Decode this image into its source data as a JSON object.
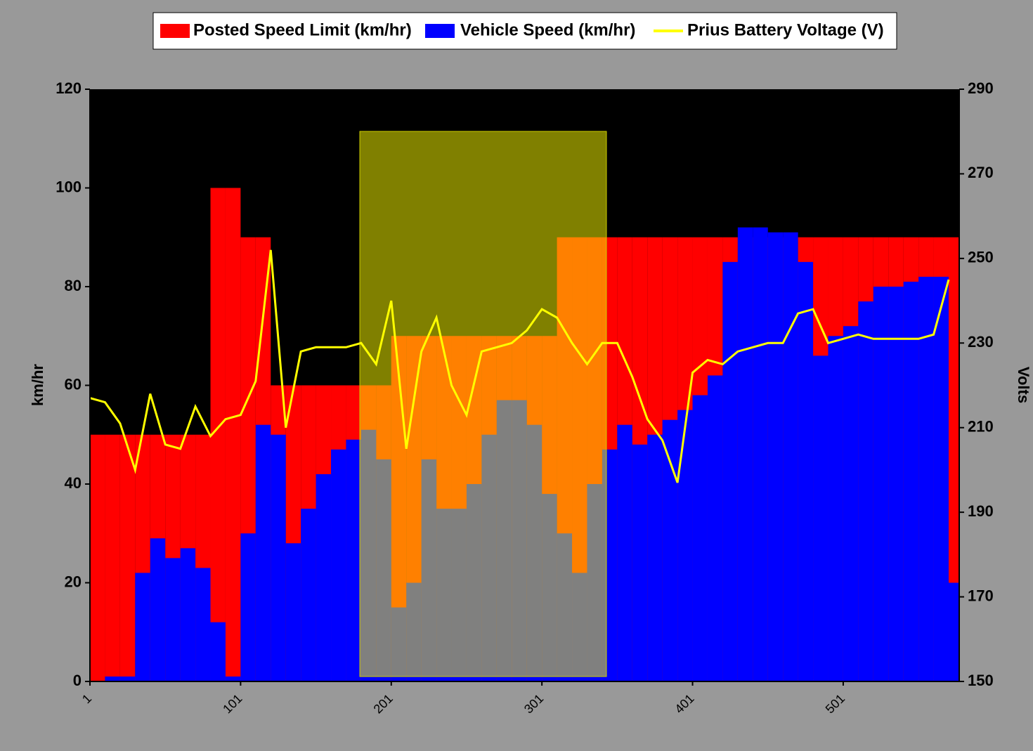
{
  "chart_data": {
    "type": "bar-line",
    "y_label": "km/hr",
    "y2_label": "Volts",
    "x": [
      1,
      11,
      21,
      31,
      41,
      51,
      61,
      71,
      81,
      91,
      101,
      111,
      121,
      131,
      141,
      151,
      161,
      171,
      181,
      191,
      201,
      211,
      221,
      231,
      241,
      251,
      261,
      271,
      281,
      291,
      301,
      311,
      321,
      331,
      341,
      351,
      361,
      371,
      381,
      391,
      401,
      411,
      421,
      431,
      441,
      451,
      461,
      471,
      481,
      491,
      501,
      511,
      521,
      531,
      541,
      551,
      561,
      571
    ],
    "series": [
      {
        "name": "Posted Speed Limit (km/hr)",
        "color": "#ff0000",
        "kind": "bar",
        "values": [
          50,
          50,
          50,
          50,
          50,
          50,
          50,
          50,
          100,
          100,
          90,
          90,
          60,
          60,
          60,
          60,
          60,
          60,
          60,
          60,
          70,
          70,
          70,
          70,
          70,
          70,
          70,
          70,
          70,
          70,
          70,
          90,
          90,
          90,
          90,
          90,
          90,
          90,
          90,
          90,
          90,
          90,
          90,
          90,
          90,
          90,
          90,
          90,
          90,
          90,
          90,
          90,
          90,
          90,
          90,
          90,
          90,
          90
        ]
      },
      {
        "name": "Vehicle Speed (km/hr)",
        "color": "#0000ff",
        "kind": "bar",
        "values": [
          0,
          1,
          1,
          22,
          29,
          25,
          27,
          23,
          12,
          1,
          30,
          52,
          50,
          28,
          35,
          42,
          47,
          49,
          51,
          45,
          15,
          20,
          45,
          35,
          35,
          40,
          50,
          57,
          57,
          52,
          38,
          30,
          22,
          40,
          47,
          52,
          48,
          50,
          53,
          55,
          58,
          62,
          85,
          92,
          92,
          91,
          91,
          85,
          66,
          70,
          72,
          77,
          80,
          80,
          81,
          82,
          82,
          20
        ]
      },
      {
        "name": "Prius Battery Voltage (V)",
        "color": "#ffff00",
        "kind": "line",
        "axis": "y2",
        "values": [
          217,
          216,
          211,
          200,
          218,
          206,
          205,
          215,
          208,
          212,
          213,
          221,
          252,
          210,
          228,
          229,
          229,
          229,
          230,
          225,
          240,
          205,
          228,
          236,
          220,
          213,
          228,
          229,
          230,
          233,
          238,
          236,
          230,
          225,
          230,
          230,
          222,
          212,
          207,
          197,
          223,
          226,
          225,
          228,
          229,
          230,
          230,
          237,
          238,
          230,
          231,
          232,
          231,
          231,
          231,
          231,
          232,
          245
        ]
      }
    ],
    "xlim": [
      1,
      578
    ],
    "xticks": [
      1,
      101,
      201,
      301,
      401,
      501
    ],
    "ylim": [
      0,
      120
    ],
    "yticks": [
      0,
      20,
      40,
      60,
      80,
      100,
      120
    ],
    "y2lim": [
      150,
      290
    ],
    "y2ticks": [
      150,
      170,
      190,
      210,
      230,
      250,
      270,
      290
    ]
  }
}
